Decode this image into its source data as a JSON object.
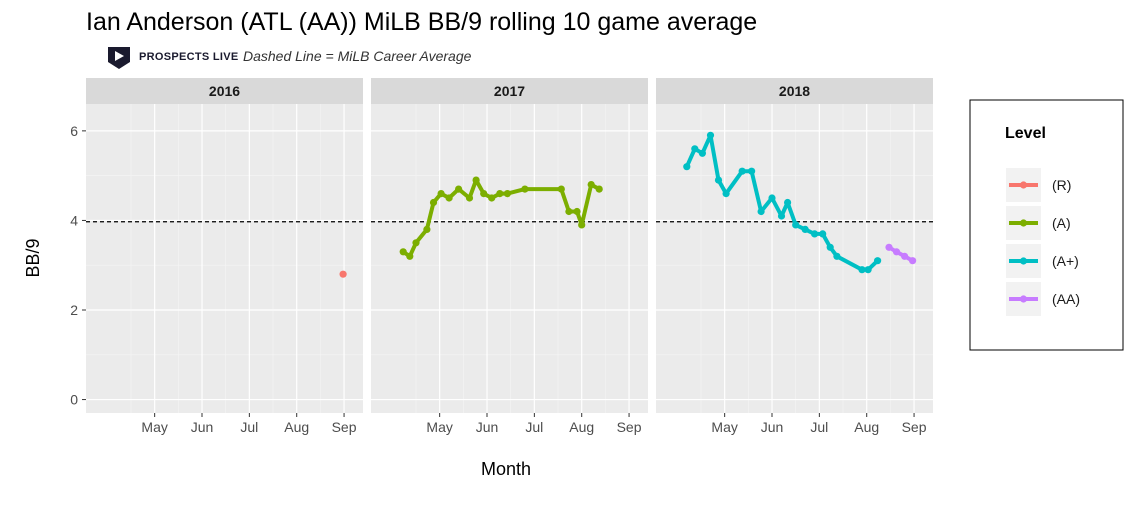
{
  "title": "Ian Anderson (ATL (AA)) MiLB BB/9 rolling 10 game average",
  "subtitle": "Dashed Line = MiLB Career Average",
  "brand": "PROSPECTS LIVE",
  "chart_data": {
    "type": "line",
    "xlabel": "Month",
    "ylabel": "BB/9",
    "ylim": [
      -0.3,
      6.6
    ],
    "yticks": [
      0,
      2,
      4,
      6
    ],
    "xlim": [
      3.55,
      9.4
    ],
    "xticks": [
      {
        "label": "May",
        "value": 5
      },
      {
        "label": "Jun",
        "value": 6
      },
      {
        "label": "Jul",
        "value": 7
      },
      {
        "label": "Aug",
        "value": 8
      },
      {
        "label": "Sep",
        "value": 9
      }
    ],
    "career_average": 3.97,
    "grid": true,
    "legend_position": "right",
    "legend_title": "Level",
    "levels": [
      {
        "name": "(R)",
        "color": "#F8766D"
      },
      {
        "name": "(A)",
        "color": "#7CAE00"
      },
      {
        "name": "(A+)",
        "color": "#00BFC4"
      },
      {
        "name": "(AA)",
        "color": "#C77CFF"
      }
    ],
    "panels": [
      {
        "year": "2016",
        "series": [
          {
            "level": "(R)",
            "x": [
              8.98
            ],
            "y": [
              2.8
            ]
          }
        ]
      },
      {
        "year": "2017",
        "series": [
          {
            "level": "(A)",
            "x": [
              4.23,
              4.37,
              4.5,
              4.73,
              4.87,
              5.03,
              5.2,
              5.4,
              5.63,
              5.77,
              5.93,
              6.1,
              6.27,
              6.43,
              6.8,
              7.57,
              7.73,
              7.9,
              8.0,
              8.2,
              8.37
            ],
            "y": [
              3.3,
              3.2,
              3.5,
              3.8,
              4.4,
              4.6,
              4.5,
              4.7,
              4.5,
              4.9,
              4.6,
              4.5,
              4.6,
              4.6,
              4.7,
              4.7,
              4.2,
              4.2,
              3.9,
              4.8,
              4.7
            ]
          }
        ]
      },
      {
        "year": "2018",
        "series": [
          {
            "level": "(A+)",
            "x": [
              4.2,
              4.37,
              4.53,
              4.7,
              4.87,
              5.03,
              5.37,
              5.57,
              5.77,
              6.0,
              6.2,
              6.33,
              6.5,
              6.7,
              6.9,
              7.07,
              7.23,
              7.37,
              7.9,
              8.03,
              8.23
            ],
            "y": [
              5.2,
              5.6,
              5.5,
              5.9,
              4.9,
              4.6,
              5.1,
              5.1,
              4.2,
              4.5,
              4.1,
              4.4,
              3.9,
              3.8,
              3.7,
              3.7,
              3.4,
              3.2,
              2.9,
              2.9,
              3.1
            ]
          },
          {
            "level": "(AA)",
            "x": [
              8.47,
              8.63,
              8.8,
              8.97
            ],
            "y": [
              3.4,
              3.3,
              3.2,
              3.1
            ]
          }
        ]
      }
    ]
  }
}
